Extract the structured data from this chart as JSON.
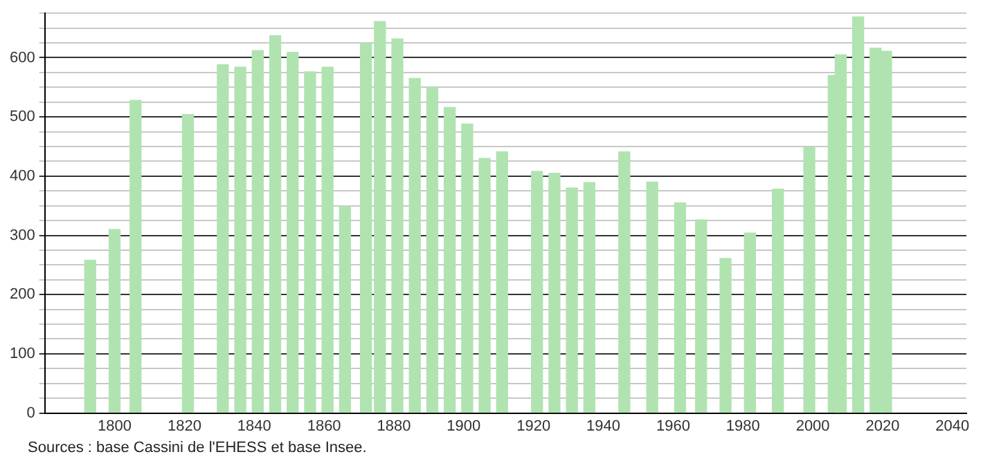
{
  "chart_data": {
    "type": "bar",
    "x": [
      1793,
      1800,
      1806,
      1821,
      1831,
      1836,
      1841,
      1846,
      1851,
      1856,
      1861,
      1866,
      1872,
      1876,
      1881,
      1886,
      1891,
      1896,
      1901,
      1906,
      1911,
      1921,
      1926,
      1931,
      1936,
      1946,
      1954,
      1962,
      1968,
      1975,
      1982,
      1990,
      1999,
      2006,
      2008,
      2013,
      2018,
      2021
    ],
    "values": [
      258,
      310,
      528,
      504,
      588,
      584,
      612,
      637,
      609,
      576,
      584,
      349,
      625,
      661,
      632,
      565,
      550,
      516,
      488,
      430,
      441,
      408,
      405,
      380,
      389,
      441,
      390,
      355,
      326,
      261,
      304,
      378,
      449,
      570,
      605,
      669,
      616,
      611
    ],
    "color": "#b0e3b0",
    "xlim": [
      1780,
      2044
    ],
    "xticks": [
      1800,
      1820,
      1840,
      1860,
      1880,
      1900,
      1920,
      1940,
      1960,
      1980,
      2000,
      2020,
      2040
    ],
    "ylim": [
      0,
      675
    ],
    "yticks": [
      0,
      {
        "value": 25,
        "label": null
      },
      {
        "value": 50,
        "label": null
      },
      {
        "value": 75,
        "label": null
      },
      100,
      {
        "value": 125,
        "label": null
      },
      {
        "value": 150,
        "label": null
      },
      {
        "value": 175,
        "label": null
      },
      200,
      {
        "value": 225,
        "label": null
      },
      {
        "value": 250,
        "label": null
      },
      {
        "value": 275,
        "label": null
      },
      300,
      {
        "value": 325,
        "label": null
      },
      {
        "value": 350,
        "label": null
      },
      {
        "value": 375,
        "label": null
      },
      400,
      {
        "value": 425,
        "label": null
      },
      {
        "value": 450,
        "label": null
      },
      {
        "value": 475,
        "label": null
      },
      500,
      {
        "value": 525,
        "label": null
      },
      {
        "value": 550,
        "label": null
      },
      {
        "value": 575,
        "label": null
      },
      600,
      {
        "value": 625,
        "label": null
      },
      {
        "value": 650,
        "label": null
      },
      {
        "value": 675,
        "label": null
      }
    ],
    "grid": "y",
    "annotations": [
      "Sources : base Cassini de l'EHESS et base Insee."
    ]
  }
}
